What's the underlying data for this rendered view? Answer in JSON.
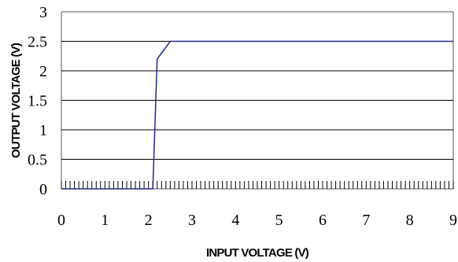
{
  "chart_data": {
    "type": "line",
    "title": "",
    "xlabel": "INPUT VOLTAGE (V)",
    "ylabel": "OUTPUT VOLTAGE (V)",
    "xlim": [
      0,
      9
    ],
    "ylim": [
      0,
      3
    ],
    "x_ticks": [
      "0",
      "1",
      "2",
      "3",
      "4",
      "5",
      "6",
      "7",
      "8",
      "9"
    ],
    "y_ticks": [
      "0",
      "0.5",
      "1",
      "1.5",
      "2",
      "2.5",
      "3"
    ],
    "grid": "horizontal",
    "legend": "none",
    "series": [
      {
        "color": "#1f2a86",
        "x": [
          0,
          2.1,
          2.2,
          2.5,
          9
        ],
        "y": [
          0,
          0,
          2.2,
          2.5,
          2.5
        ]
      }
    ]
  }
}
